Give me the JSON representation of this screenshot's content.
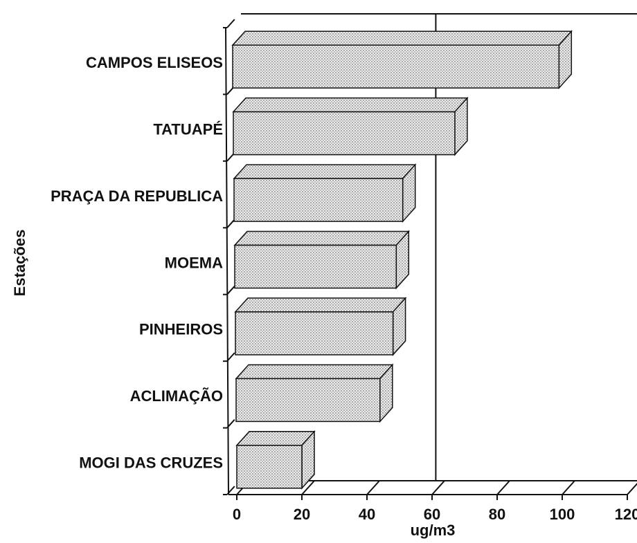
{
  "chart_data": {
    "type": "bar",
    "orientation": "horizontal",
    "y_label": "Estações",
    "x_label": "ug/m3",
    "categories": [
      "CAMPOS ELISEOS",
      "TATUAPÉ",
      "PRAÇA DA REPUBLICA",
      "MOEMA",
      "PINHEIROS",
      "ACLIMAÇÃO",
      "MOGI DAS CRUZES"
    ],
    "values": [
      99,
      67,
      51,
      49,
      48,
      44,
      20
    ],
    "color": "#d4d4d4",
    "xlim": [
      0,
      120
    ],
    "xticks": [
      0,
      20,
      40,
      60,
      80,
      100,
      120
    ],
    "reference_line": 60
  }
}
